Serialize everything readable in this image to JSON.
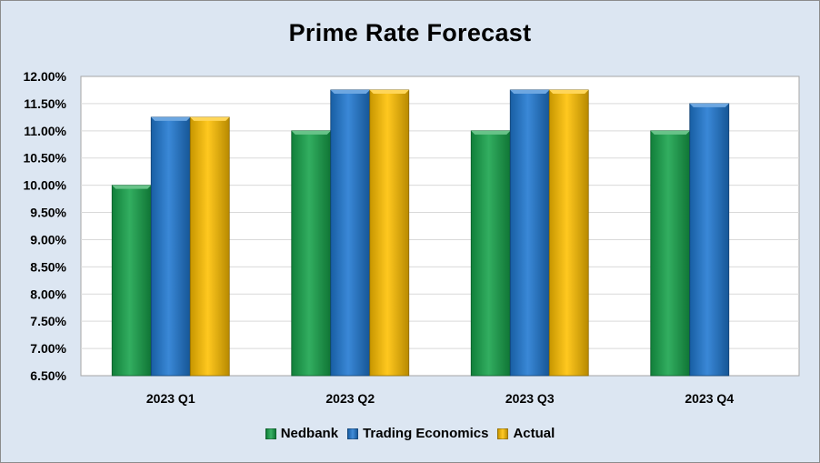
{
  "chart_data": {
    "type": "bar",
    "title": "Prime Rate Forecast",
    "xlabel": "",
    "ylabel": "",
    "categories": [
      "2023 Q1",
      "2023 Q2",
      "2023 Q3",
      "2023 Q4"
    ],
    "series": [
      {
        "name": "Nedbank",
        "color": "#16a34a",
        "values": [
          10.0,
          11.0,
          11.0,
          11.0
        ]
      },
      {
        "name": "Trading Economics",
        "color": "#1f78d1",
        "values": [
          11.25,
          11.75,
          11.75,
          11.5
        ]
      },
      {
        "name": "Actual",
        "color": "#ffc000",
        "values": [
          11.25,
          11.75,
          11.75,
          null
        ]
      }
    ],
    "ylim": [
      6.5,
      12.0
    ],
    "yticks": [
      6.5,
      7.0,
      7.5,
      8.0,
      8.5,
      9.0,
      9.5,
      10.0,
      10.5,
      11.0,
      11.5,
      12.0
    ],
    "ytick_labels": [
      "6.50%",
      "7.00%",
      "7.50%",
      "8.00%",
      "8.50%",
      "9.00%",
      "9.50%",
      "10.00%",
      "10.50%",
      "11.00%",
      "11.50%",
      "12.00%"
    ],
    "grid": true,
    "legend_position": "bottom"
  }
}
